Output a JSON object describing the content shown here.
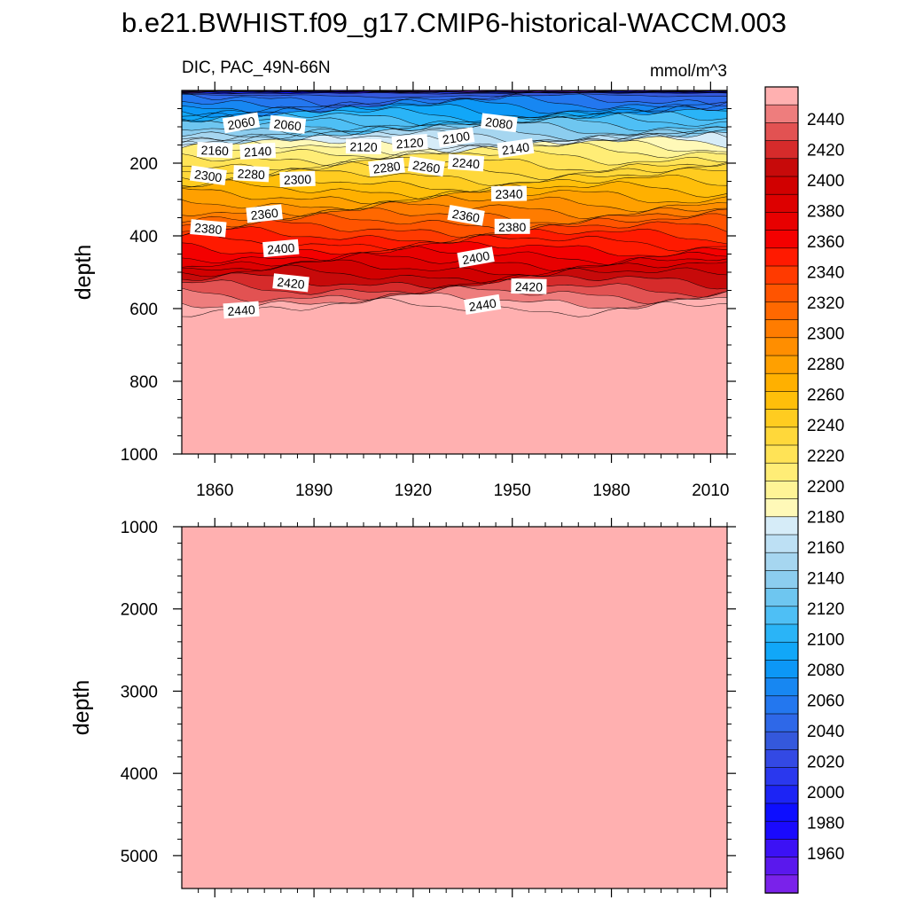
{
  "title": "b.e21.BWHIST.f09_g17.CMIP6-historical-WACCM.003",
  "chart_data": [
    {
      "type": "heatmap",
      "panel": "upper",
      "variable_label": "DIC, PAC_49N-66N",
      "units": "mmol/m^3",
      "ylabel": "depth",
      "xlabel": "",
      "xlim": [
        1850,
        2015
      ],
      "ylim": [
        0,
        1000
      ],
      "y_reversed": true,
      "x_ticks": [
        "1860",
        "1890",
        "1920",
        "1950",
        "1980",
        "2010"
      ],
      "y_ticks": [
        "200",
        "400",
        "600",
        "800",
        "1000"
      ],
      "contour_labels": [
        {
          "text": "2060",
          "x": 1868,
          "y": 90
        },
        {
          "text": "2060",
          "x": 1882,
          "y": 95
        },
        {
          "text": "2120",
          "x": 1905,
          "y": 155
        },
        {
          "text": "2120",
          "x": 1919,
          "y": 145
        },
        {
          "text": "2100",
          "x": 1933,
          "y": 130
        },
        {
          "text": "2080",
          "x": 1946,
          "y": 90
        },
        {
          "text": "2160",
          "x": 1860,
          "y": 165
        },
        {
          "text": "2140",
          "x": 1873,
          "y": 168
        },
        {
          "text": "2140",
          "x": 1951,
          "y": 160
        },
        {
          "text": "2300",
          "x": 1858,
          "y": 235
        },
        {
          "text": "2280",
          "x": 1871,
          "y": 230
        },
        {
          "text": "2300",
          "x": 1885,
          "y": 245
        },
        {
          "text": "2280",
          "x": 1912,
          "y": 212
        },
        {
          "text": "2260",
          "x": 1924,
          "y": 210
        },
        {
          "text": "2240",
          "x": 1936,
          "y": 200
        },
        {
          "text": "2340",
          "x": 1949,
          "y": 285
        },
        {
          "text": "2360",
          "x": 1875,
          "y": 340
        },
        {
          "text": "2360",
          "x": 1936,
          "y": 345
        },
        {
          "text": "2380",
          "x": 1858,
          "y": 380
        },
        {
          "text": "2380",
          "x": 1950,
          "y": 375
        },
        {
          "text": "2400",
          "x": 1880,
          "y": 435
        },
        {
          "text": "2400",
          "x": 1939,
          "y": 460
        },
        {
          "text": "2420",
          "x": 1883,
          "y": 530
        },
        {
          "text": "2420",
          "x": 1955,
          "y": 540
        },
        {
          "text": "2440",
          "x": 1868,
          "y": 605
        },
        {
          "text": "2440",
          "x": 1941,
          "y": 590
        }
      ]
    },
    {
      "type": "heatmap",
      "panel": "lower",
      "ylabel": "depth",
      "xlim": [
        1850,
        2015
      ],
      "ylim": [
        1000,
        5400
      ],
      "y_reversed": true,
      "y_ticks": [
        "1000",
        "2000",
        "3000",
        "4000",
        "5000"
      ],
      "fill_value": 2450
    }
  ],
  "colorbar": {
    "labels": [
      "2440",
      "2420",
      "2400",
      "2380",
      "2360",
      "2340",
      "2320",
      "2300",
      "2280",
      "2260",
      "2240",
      "2220",
      "2200",
      "2180",
      "2160",
      "2140",
      "2120",
      "2100",
      "2080",
      "2060",
      "2040",
      "2020",
      "2000",
      "1980",
      "1960"
    ],
    "colors_top_to_bottom": [
      "#ffb0b0",
      "#ee7d7d",
      "#e25252",
      "#d62b2b",
      "#c70a0a",
      "#d10000",
      "#dd0000",
      "#e80000",
      "#f40000",
      "#ff1a00",
      "#ff3a00",
      "#ff5400",
      "#ff6800",
      "#ff7c00",
      "#ff8e00",
      "#ffa000",
      "#ffb000",
      "#ffbf0a",
      "#ffcc20",
      "#ffd83a",
      "#ffe356",
      "#ffed76",
      "#fff496",
      "#fff9b8",
      "#d6ecf8",
      "#bde0f4",
      "#a6d6f0",
      "#8ccdef",
      "#6ec6f0",
      "#4ebff5",
      "#2ab4f7",
      "#11a7f8",
      "#0c97f6",
      "#1787f2",
      "#2377ef",
      "#2e68e8",
      "#3458dc",
      "#3349e4",
      "#2a38ee",
      "#1c24f5",
      "#0d0eff",
      "#1a0afd",
      "#3c11f5",
      "#5a18ed",
      "#7a22ea"
    ]
  }
}
